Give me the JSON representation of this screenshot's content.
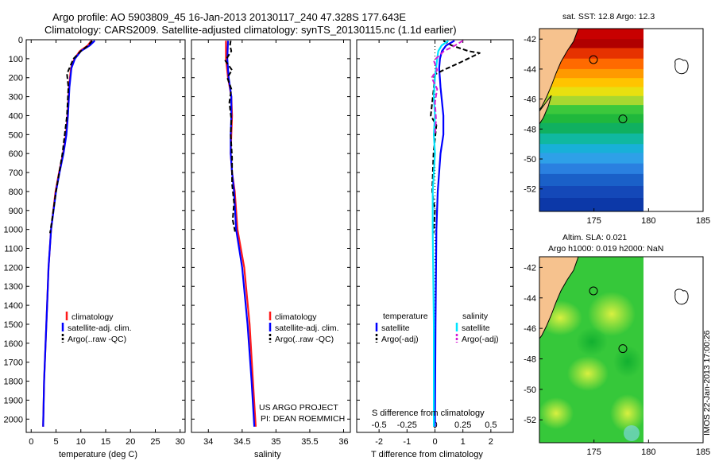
{
  "header": {
    "line1": "Argo profile: AO 5903809_45 16-Jan-2013 20130117_240 47.328S 177.643E",
    "line2": "Climatology: CARS2009. Satellite-adjusted climatology: synTS_20130115.nc (1.1d earlier)"
  },
  "colors": {
    "climatology": "#ff1a1a",
    "satellite": "#0000ff",
    "argo": "#000000",
    "sal_satellite": "#00e5ff",
    "sal_argo": "#d61ad6",
    "land": "#f6c28e"
  },
  "chart_data": [
    {
      "id": "temperature",
      "type": "line",
      "xlabel": "temperature (deg C)",
      "ylabel": "",
      "xlim": [
        -1,
        31
      ],
      "ylim": [
        0,
        2070
      ],
      "xticks": [
        0,
        5,
        10,
        15,
        20,
        25,
        30
      ],
      "yticks": [
        0,
        100,
        200,
        300,
        400,
        500,
        600,
        700,
        800,
        900,
        1000,
        1100,
        1200,
        1300,
        1400,
        1500,
        1600,
        1700,
        1800,
        1900,
        2000
      ],
      "legend": [
        "climatology",
        "satellite-adj. clim.",
        "Argo(..raw -QC)"
      ],
      "series": [
        {
          "name": "climatology",
          "x": [
            12.1,
            11.4,
            9.8,
            8.7,
            8.0,
            7.6,
            7.3,
            7.0,
            6.4,
            5.6,
            4.9,
            4.0,
            3.5,
            3.2,
            2.9,
            2.6,
            2.4
          ],
          "y": [
            5,
            30,
            60,
            100,
            150,
            250,
            400,
            500,
            600,
            700,
            800,
            1000,
            1200,
            1400,
            1600,
            1800,
            2040
          ]
        },
        {
          "name": "satellite-adj. clim.",
          "x": [
            12.8,
            11.8,
            10.0,
            8.8,
            8.1,
            7.7,
            7.4,
            7.1,
            6.5,
            5.7,
            5.0,
            4.0,
            3.5,
            3.2,
            2.9,
            2.6,
            2.4
          ],
          "y": [
            5,
            30,
            60,
            100,
            150,
            250,
            400,
            500,
            600,
            700,
            800,
            1000,
            1200,
            1400,
            1600,
            1800,
            2040
          ]
        },
        {
          "name": "Argo(..raw -QC)",
          "x": [
            12.3,
            11.5,
            10.0,
            8.5,
            7.2,
            7.5,
            7.2,
            6.3,
            5.0,
            4.2,
            3.8
          ],
          "y": [
            5,
            30,
            60,
            100,
            180,
            250,
            400,
            600,
            800,
            950,
            1020
          ]
        }
      ]
    },
    {
      "id": "salinity",
      "type": "line",
      "xlabel": "salinity",
      "ylabel": "",
      "xlim": [
        33.75,
        36.1
      ],
      "ylim": [
        0,
        2070
      ],
      "xticks": [
        34,
        34.5,
        35,
        35.5,
        36
      ],
      "xticklabels": [
        "34",
        "34.5",
        "35",
        "35.5",
        "36"
      ],
      "legend": [
        "climatology",
        "satellite-adj. clim.",
        "Argo(..raw -QC)"
      ],
      "annotation": [
        "US ARGO PROJECT",
        "PI: DEAN ROEMMICH"
      ],
      "series": [
        {
          "name": "climatology",
          "x": [
            34.26,
            34.26,
            34.29,
            34.34,
            34.35,
            34.34,
            34.33,
            34.35,
            34.39,
            34.43,
            34.53,
            34.61,
            34.66,
            34.7
          ],
          "y": [
            5,
            100,
            200,
            300,
            400,
            500,
            600,
            700,
            800,
            1000,
            1200,
            1500,
            1800,
            2040
          ]
        },
        {
          "name": "satellite-adj. clim.",
          "x": [
            34.29,
            34.28,
            34.3,
            34.34,
            34.34,
            34.33,
            34.33,
            34.35,
            34.38,
            34.41,
            34.5,
            34.58,
            34.64,
            34.68
          ],
          "y": [
            5,
            100,
            200,
            300,
            400,
            500,
            600,
            700,
            800,
            1000,
            1200,
            1500,
            1800,
            2040
          ]
        },
        {
          "name": "Argo(..raw -QC)",
          "x": [
            34.33,
            34.32,
            34.34,
            34.25,
            34.35,
            34.28,
            34.34,
            34.31,
            34.34,
            34.33,
            34.35,
            34.35,
            34.38,
            34.36,
            34.4
          ],
          "y": [
            5,
            30,
            60,
            110,
            160,
            200,
            260,
            330,
            420,
            500,
            620,
            760,
            860,
            950,
            1020
          ]
        }
      ]
    },
    {
      "id": "difference",
      "type": "line",
      "xlabel": "T difference from climatology",
      "xlabel_top": "S difference from climatology",
      "xlim": [
        -2.8,
        2.8
      ],
      "ylim": [
        0,
        2070
      ],
      "xticks": [
        -2,
        -1,
        0,
        1,
        2
      ],
      "xticklabels": [
        "-2",
        "-1",
        "0",
        "1",
        "2"
      ],
      "s_xticks": [
        -0.5,
        -0.25,
        0,
        0.25,
        0.5
      ],
      "s_xticklabels": [
        "-0.5",
        "-0.25",
        "0",
        "0.25",
        "0.5"
      ],
      "s_scale": 4,
      "legend_left": [
        "temperature",
        "satellite",
        "Argo(-adj)"
      ],
      "legend_right": [
        "salinity",
        "satellite",
        "Argo(-adj)"
      ],
      "series": [
        {
          "name": "temperature satellite",
          "x": [
            0.7,
            0.4,
            0.25,
            0.18,
            0.15,
            0.2,
            0.3,
            0.3,
            0.2,
            0.1,
            0.05,
            0.02,
            0.0
          ],
          "y": [
            5,
            30,
            60,
            100,
            150,
            250,
            400,
            500,
            600,
            800,
            1000,
            1500,
            2040
          ]
        },
        {
          "name": "temperature Argo(-adj)",
          "x": [
            0.3,
            0.6,
            1.2,
            1.6,
            0.9,
            0.3,
            -0.1,
            0.0,
            -0.15,
            0.05,
            -0.05,
            -0.1,
            0.0,
            -0.05
          ],
          "y": [
            5,
            30,
            60,
            70,
            120,
            160,
            190,
            200,
            400,
            450,
            600,
            800,
            900,
            1020
          ]
        },
        {
          "name": "salinity satellite",
          "x": [
            0.12,
            0.06,
            0.03,
            0.02,
            0.0,
            -0.01,
            0.0,
            -0.01,
            0.0,
            -0.02,
            -0.02,
            -0.01,
            -0.01
          ],
          "y": [
            5,
            30,
            60,
            100,
            200,
            300,
            400,
            500,
            600,
            800,
            1000,
            1500,
            2040
          ]
        },
        {
          "name": "salinity Argo(-adj)",
          "x": [
            0.25,
            0.18,
            0.08,
            -0.01,
            0.02,
            -0.03,
            0.02,
            0.0,
            0.01,
            0.0
          ],
          "y": [
            5,
            30,
            60,
            110,
            160,
            200,
            260,
            330,
            420,
            500
          ]
        }
      ]
    },
    {
      "id": "sst_map",
      "type": "heatmap",
      "title": "sat. SST: 12.8 Argo: 12.3",
      "xlim": [
        170,
        185
      ],
      "ylim": [
        -53.5,
        -41.3
      ],
      "xticks": [
        175,
        180,
        185
      ],
      "yticks": [
        -42,
        -44,
        -46,
        -48,
        -50,
        -52
      ],
      "argo_position": {
        "lon": 177.643,
        "lat": -47.328
      },
      "fronts": [
        {
          "lat": -42.0,
          "color": "#c80000"
        },
        {
          "lat": -42.6,
          "color": "#b00000"
        },
        {
          "lat": -43.3,
          "color": "#e63200"
        },
        {
          "lat": -44.0,
          "color": "#ff6a00"
        },
        {
          "lat": -44.6,
          "color": "#ff9a00"
        },
        {
          "lat": -45.2,
          "color": "#ffc400"
        },
        {
          "lat": -45.8,
          "color": "#e8e010"
        },
        {
          "lat": -46.4,
          "color": "#a8d830"
        },
        {
          "lat": -47.0,
          "color": "#3cc83c"
        },
        {
          "lat": -47.6,
          "color": "#20b83c"
        },
        {
          "lat": -48.3,
          "color": "#10b060"
        },
        {
          "lat": -49.0,
          "color": "#10b8a0"
        },
        {
          "lat": -49.6,
          "color": "#18b0d8"
        },
        {
          "lat": -50.3,
          "color": "#2ea0e8"
        },
        {
          "lat": -51.0,
          "color": "#2a80e0"
        },
        {
          "lat": -51.8,
          "color": "#1a60c8"
        },
        {
          "lat": -52.6,
          "color": "#1448b8"
        },
        {
          "lat": -53.5,
          "color": "#0c38a8"
        }
      ]
    },
    {
      "id": "sla_map",
      "type": "heatmap",
      "title_line1": "Altim. SLA: 0.021",
      "title_line2": "Argo h1000: 0.019 h2000: NaN",
      "xlim": [
        170,
        185
      ],
      "ylim": [
        -53.5,
        -41.3
      ],
      "xticks": [
        175,
        180,
        185
      ],
      "yticks": [
        -42,
        -44,
        -46,
        -48,
        -50,
        -52
      ],
      "argo_position": {
        "lon": 177.643,
        "lat": -47.328
      }
    }
  ],
  "watermark": "IMOS 22-Jan-2013 17:00:26"
}
